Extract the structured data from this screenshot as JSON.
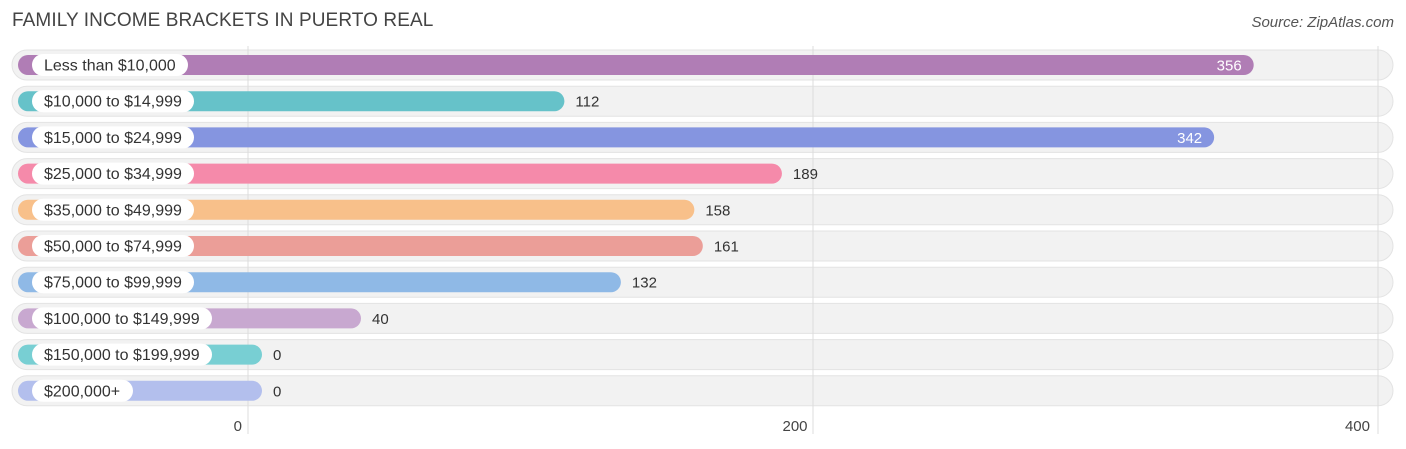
{
  "title": "FAMILY INCOME BRACKETS IN PUERTO REAL",
  "source": "Source: ZipAtlas.com",
  "chart_data": {
    "type": "bar",
    "orientation": "horizontal",
    "title": "FAMILY INCOME BRACKETS IN PUERTO REAL",
    "xlabel": "",
    "ylabel": "",
    "xlim": [
      0,
      400
    ],
    "x_ticks": [
      0,
      200,
      400
    ],
    "x_tick_labels": [
      "0",
      "200",
      "400"
    ],
    "grid": true,
    "categories": [
      "Less than $10,000",
      "$10,000 to $14,999",
      "$15,000 to $24,999",
      "$25,000 to $34,999",
      "$35,000 to $49,999",
      "$50,000 to $74,999",
      "$75,000 to $99,999",
      "$100,000 to $149,999",
      "$150,000 to $199,999",
      "$200,000+"
    ],
    "values": [
      356,
      112,
      342,
      189,
      158,
      161,
      132,
      40,
      0,
      0
    ],
    "colors": [
      "#b07db5",
      "#66c2c9",
      "#8595e0",
      "#f58aaa",
      "#f8c08a",
      "#eb9e98",
      "#8fb9e6",
      "#c8a8d0",
      "#78cfd3",
      "#b3bfed"
    ]
  }
}
